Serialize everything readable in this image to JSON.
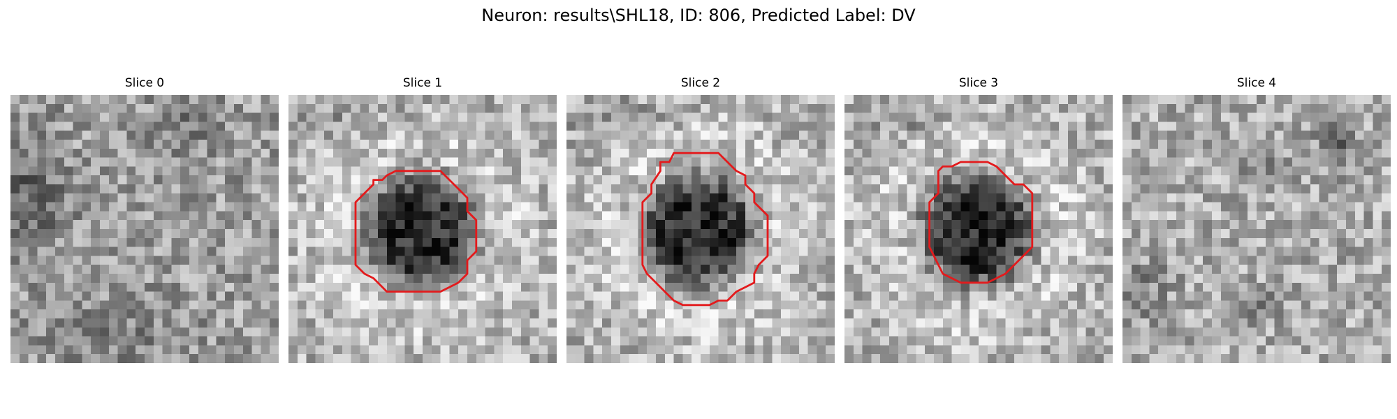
{
  "figure": {
    "title": "Neuron: results\\SHL18, ID: 806, Predicted Label: DV"
  },
  "slices": [
    {
      "label": "Slice 0",
      "has_contour": false,
      "dark_region": "diffuse-left"
    },
    {
      "label": "Slice 1",
      "has_contour": true,
      "dark_region": "center"
    },
    {
      "label": "Slice 2",
      "has_contour": true,
      "dark_region": "center"
    },
    {
      "label": "Slice 3",
      "has_contour": true,
      "dark_region": "center"
    },
    {
      "label": "Slice 4",
      "has_contour": false,
      "dark_region": "diffuse-top-right"
    }
  ],
  "colors": {
    "contour": "#e31a1c",
    "colormap": "grayscale"
  }
}
